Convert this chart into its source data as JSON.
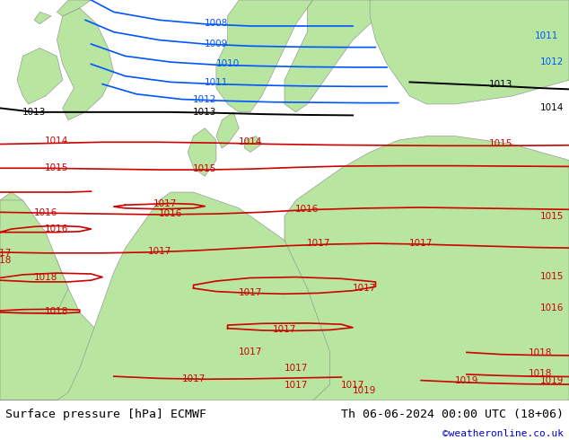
{
  "title_left": "Surface pressure [hPa] ECMWF",
  "title_right": "Th 06-06-2024 00:00 UTC (18+06)",
  "credit": "©weatheronline.co.uk",
  "land_color": "#b8e6a0",
  "sea_color": "#c8ccd4",
  "blue_color": "#0055ff",
  "red_color": "#cc0000",
  "black_color": "#000000",
  "coast_color": "#888888",
  "label_fontsize": 7.5,
  "title_fontsize": 9.5,
  "credit_fontsize": 8,
  "fig_width": 6.34,
  "fig_height": 4.9,
  "dpi": 100
}
